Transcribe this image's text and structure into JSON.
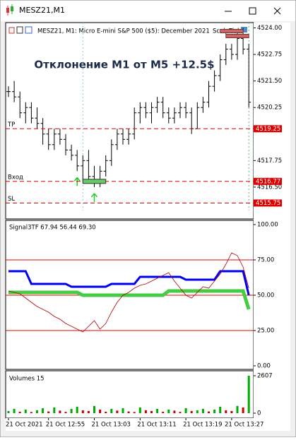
{
  "window": {
    "title": "MESZ21,M1"
  },
  "chart_data": [
    {
      "type": "candlestick",
      "title": "MESZ21, M1:  Micro E-mini S&P 500 ($5): December 2021",
      "subtitle": "ScalpTick",
      "annotation": "Отклонение М1 от М5 +12.5$",
      "open": [
        4521.0,
        4521.0,
        4520.75,
        4520.0,
        4520.25,
        4519.75,
        4519.5,
        4519.0,
        4518.5,
        4519.0,
        4518.75,
        4518.25,
        4518.0,
        4517.5,
        4517.75,
        4517.0,
        4516.75,
        4517.25,
        4517.75,
        4518.5,
        4519.0,
        4518.75,
        4519.0,
        4520.0,
        4520.25,
        4520.0,
        4520.25,
        4520.5,
        4520.0,
        4519.75,
        4520.0,
        4520.25,
        4520.0,
        4519.25,
        4520.25,
        4520.5,
        4521.25,
        4521.75,
        4522.5,
        4523.0,
        4522.75,
        4523.5,
        4523.0
      ],
      "high": [
        4521.25,
        4521.5,
        4521.0,
        4520.5,
        4520.5,
        4520.25,
        4519.75,
        4519.25,
        4519.25,
        4519.25,
        4519.0,
        4518.5,
        4518.25,
        4518.0,
        4518.25,
        4517.5,
        4517.5,
        4518.0,
        4518.75,
        4519.25,
        4519.25,
        4519.25,
        4520.25,
        4520.5,
        4520.5,
        4520.5,
        4520.75,
        4520.75,
        4520.25,
        4520.25,
        4520.5,
        4520.5,
        4520.25,
        4520.5,
        4520.75,
        4521.5,
        4522.0,
        4522.75,
        4523.25,
        4523.25,
        4523.75,
        4524.0,
        4523.25
      ],
      "low": [
        4520.75,
        4520.5,
        4519.75,
        4519.5,
        4519.5,
        4519.25,
        4518.5,
        4518.25,
        4518.25,
        4518.5,
        4518.0,
        4517.75,
        4517.25,
        4516.75,
        4516.75,
        4516.5,
        4516.5,
        4517.0,
        4517.5,
        4518.25,
        4518.5,
        4518.5,
        4518.75,
        4519.5,
        4519.75,
        4519.5,
        4520.0,
        4519.75,
        4519.5,
        4519.5,
        4519.75,
        4519.75,
        4519.0,
        4519.25,
        4520.0,
        4520.25,
        4521.0,
        4521.5,
        4522.25,
        4522.5,
        4522.5,
        4522.75,
        4520.25
      ],
      "close": [
        4521.0,
        4520.75,
        4520.0,
        4520.25,
        4519.75,
        4519.5,
        4519.0,
        4518.5,
        4519.0,
        4518.75,
        4518.25,
        4518.0,
        4517.5,
        4517.75,
        4517.0,
        4516.75,
        4517.25,
        4517.75,
        4518.5,
        4519.0,
        4518.75,
        4519.0,
        4520.0,
        4520.25,
        4520.0,
        4520.25,
        4520.5,
        4520.0,
        4519.75,
        4520.0,
        4520.25,
        4520.0,
        4519.25,
        4520.25,
        4520.5,
        4521.25,
        4521.75,
        4522.5,
        4523.0,
        4522.75,
        4523.5,
        4523.0,
        4520.5
      ],
      "color": "#000000",
      "ylim": [
        4515,
        4524.25
      ],
      "yticks": [
        {
          "value": 4524,
          "label": "4524.00"
        },
        4522.75,
        {
          "value": 4521.5,
          "label": "4521.50"
        },
        4520.25,
        4517.75,
        {
          "value": 4516.5,
          "label": "4516.50"
        }
      ],
      "levels": [
        {
          "name": "TP",
          "value": 4519.25
        },
        {
          "name": "Вход",
          "value": 4516.77
        },
        {
          "name": "SL",
          "value": 4515.75
        }
      ],
      "level_color": "#e00000"
    },
    {
      "type": "line",
      "title": "Signal3TF 67.94 56.44 69.30",
      "series": [
        {
          "color": "#0000ee",
          "values": [
            67,
            67,
            67,
            67,
            58,
            58,
            58,
            58,
            58,
            58,
            58,
            56,
            56,
            56,
            56,
            56,
            56,
            56,
            58,
            58,
            58,
            58,
            58,
            63,
            63,
            63,
            63,
            63,
            63,
            63,
            63,
            61,
            61,
            61,
            61,
            61,
            61,
            67,
            67,
            67,
            67,
            67,
            50
          ]
        },
        {
          "color": "#44cc44",
          "values": [
            52,
            52,
            52,
            52,
            52,
            52,
            52,
            52,
            52,
            52,
            52,
            52,
            52,
            50,
            50,
            50,
            50,
            50,
            50,
            50,
            50,
            50,
            50,
            50,
            50,
            50,
            50,
            50,
            53,
            53,
            53,
            53,
            53,
            53,
            53,
            53,
            53,
            53,
            53,
            53,
            53,
            53,
            40
          ]
        },
        {
          "color": "#b00000",
          "values": [
            53,
            52,
            51,
            48,
            45,
            42,
            40,
            38,
            35,
            33,
            30,
            28,
            26,
            24,
            28,
            32,
            26,
            30,
            38,
            45,
            50,
            52,
            55,
            57,
            58,
            60,
            62,
            64,
            66,
            60,
            55,
            50,
            48,
            52,
            56,
            55,
            60,
            65,
            72,
            80,
            78,
            70,
            55
          ]
        }
      ],
      "ylim": [
        -2.5,
        103
      ],
      "yticks": [
        {
          "value": 100,
          "label": "100.00"
        },
        {
          "value": 75,
          "label": "75.00"
        },
        {
          "value": 50,
          "label": "50.00"
        },
        {
          "value": 25,
          "label": "25.00"
        },
        {
          "value": 0,
          "label": "0.00"
        }
      ],
      "levels": [
        75,
        50,
        25
      ],
      "level_color": "#ee0000"
    },
    {
      "type": "bar",
      "title": "Volumes 15",
      "categories": [
        "21 Oct 2021",
        null,
        null,
        null,
        null,
        null,
        null,
        "21 Oct 12:55",
        null,
        null,
        null,
        null,
        null,
        null,
        null,
        "21 Oct 13:03",
        null,
        null,
        null,
        null,
        null,
        null,
        null,
        "21 Oct 13:11",
        null,
        null,
        null,
        null,
        null,
        null,
        null,
        "21 Oct 13:19",
        null,
        null,
        null,
        null,
        null,
        null,
        null,
        "21 Oct 13:27",
        null,
        null,
        null
      ],
      "values": [
        150,
        300,
        100,
        250,
        80,
        200,
        350,
        120,
        400,
        180,
        90,
        300,
        450,
        200,
        150,
        500,
        250,
        100,
        300,
        180,
        350,
        120,
        80,
        400,
        200,
        150,
        300,
        100,
        250,
        180,
        90,
        350,
        150,
        200,
        300,
        120,
        250,
        450,
        200,
        150,
        500,
        400,
        2607
      ],
      "up_color": "#00aa00",
      "down_color": "#cc0000",
      "ylim": [
        0,
        2607
      ],
      "yticks": [
        0,
        2607
      ]
    }
  ]
}
